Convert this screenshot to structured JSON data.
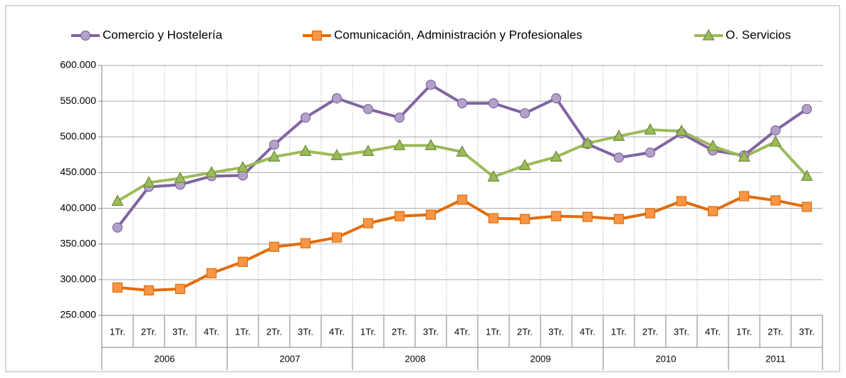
{
  "chart_data": {
    "type": "line",
    "category_groups": [
      {
        "label": "2006",
        "categories": [
          "1Tr.",
          "2Tr.",
          "3Tr.",
          "4Tr."
        ]
      },
      {
        "label": "2007",
        "categories": [
          "1Tr.",
          "2Tr.",
          "3Tr.",
          "4Tr."
        ]
      },
      {
        "label": "2008",
        "categories": [
          "1Tr.",
          "2Tr.",
          "3Tr.",
          "4Tr."
        ]
      },
      {
        "label": "2009",
        "categories": [
          "1Tr.",
          "2Tr.",
          "3Tr.",
          "4Tr."
        ]
      },
      {
        "label": "2010",
        "categories": [
          "1Tr.",
          "2Tr.",
          "3Tr.",
          "4Tr."
        ]
      },
      {
        "label": "2011",
        "categories": [
          "1Tr.",
          "2Tr.",
          "3Tr."
        ]
      }
    ],
    "series": [
      {
        "name": "Comercio y Hostelería",
        "color": "#8064a2",
        "marker_fill": "#b3a2c7",
        "marker": "circle",
        "values": [
          373000,
          430000,
          433000,
          445000,
          446000,
          489000,
          527000,
          554000,
          539000,
          527000,
          573000,
          547000,
          547000,
          533000,
          554000,
          490000,
          471000,
          478000,
          505000,
          481000,
          474000,
          509000,
          539000
        ]
      },
      {
        "name": "Comunicación, Administración y Profesionales",
        "color": "#e36c09",
        "marker_fill": "#f79646",
        "marker": "square",
        "values": [
          289000,
          285000,
          287000,
          309000,
          325000,
          346000,
          351000,
          359000,
          379000,
          389000,
          391000,
          412000,
          386000,
          385000,
          389000,
          388000,
          385000,
          393000,
          410000,
          396000,
          417000,
          411000,
          402000
        ]
      },
      {
        "name": "O. Servicios",
        "color": "#9bbb59",
        "marker_fill": "#9bbb59",
        "marker": "triangle",
        "values": [
          410000,
          436000,
          442000,
          450000,
          457000,
          472000,
          480000,
          474000,
          480000,
          488000,
          488000,
          479000,
          444000,
          460000,
          472000,
          491000,
          501000,
          510000,
          508000,
          487000,
          472000,
          493000,
          445000
        ]
      }
    ],
    "ylim": [
      250000,
      600000
    ],
    "yticks": [
      {
        "value": 250000,
        "label": "250.000"
      },
      {
        "value": 300000,
        "label": "300.000"
      },
      {
        "value": 350000,
        "label": "350.000"
      },
      {
        "value": 400000,
        "label": "400.000"
      },
      {
        "value": 450000,
        "label": "450.000"
      },
      {
        "value": 500000,
        "label": "500.000"
      },
      {
        "value": 550000,
        "label": "550.000"
      },
      {
        "value": 600000,
        "label": "600.000"
      }
    ],
    "grid": true,
    "legend": "top"
  }
}
